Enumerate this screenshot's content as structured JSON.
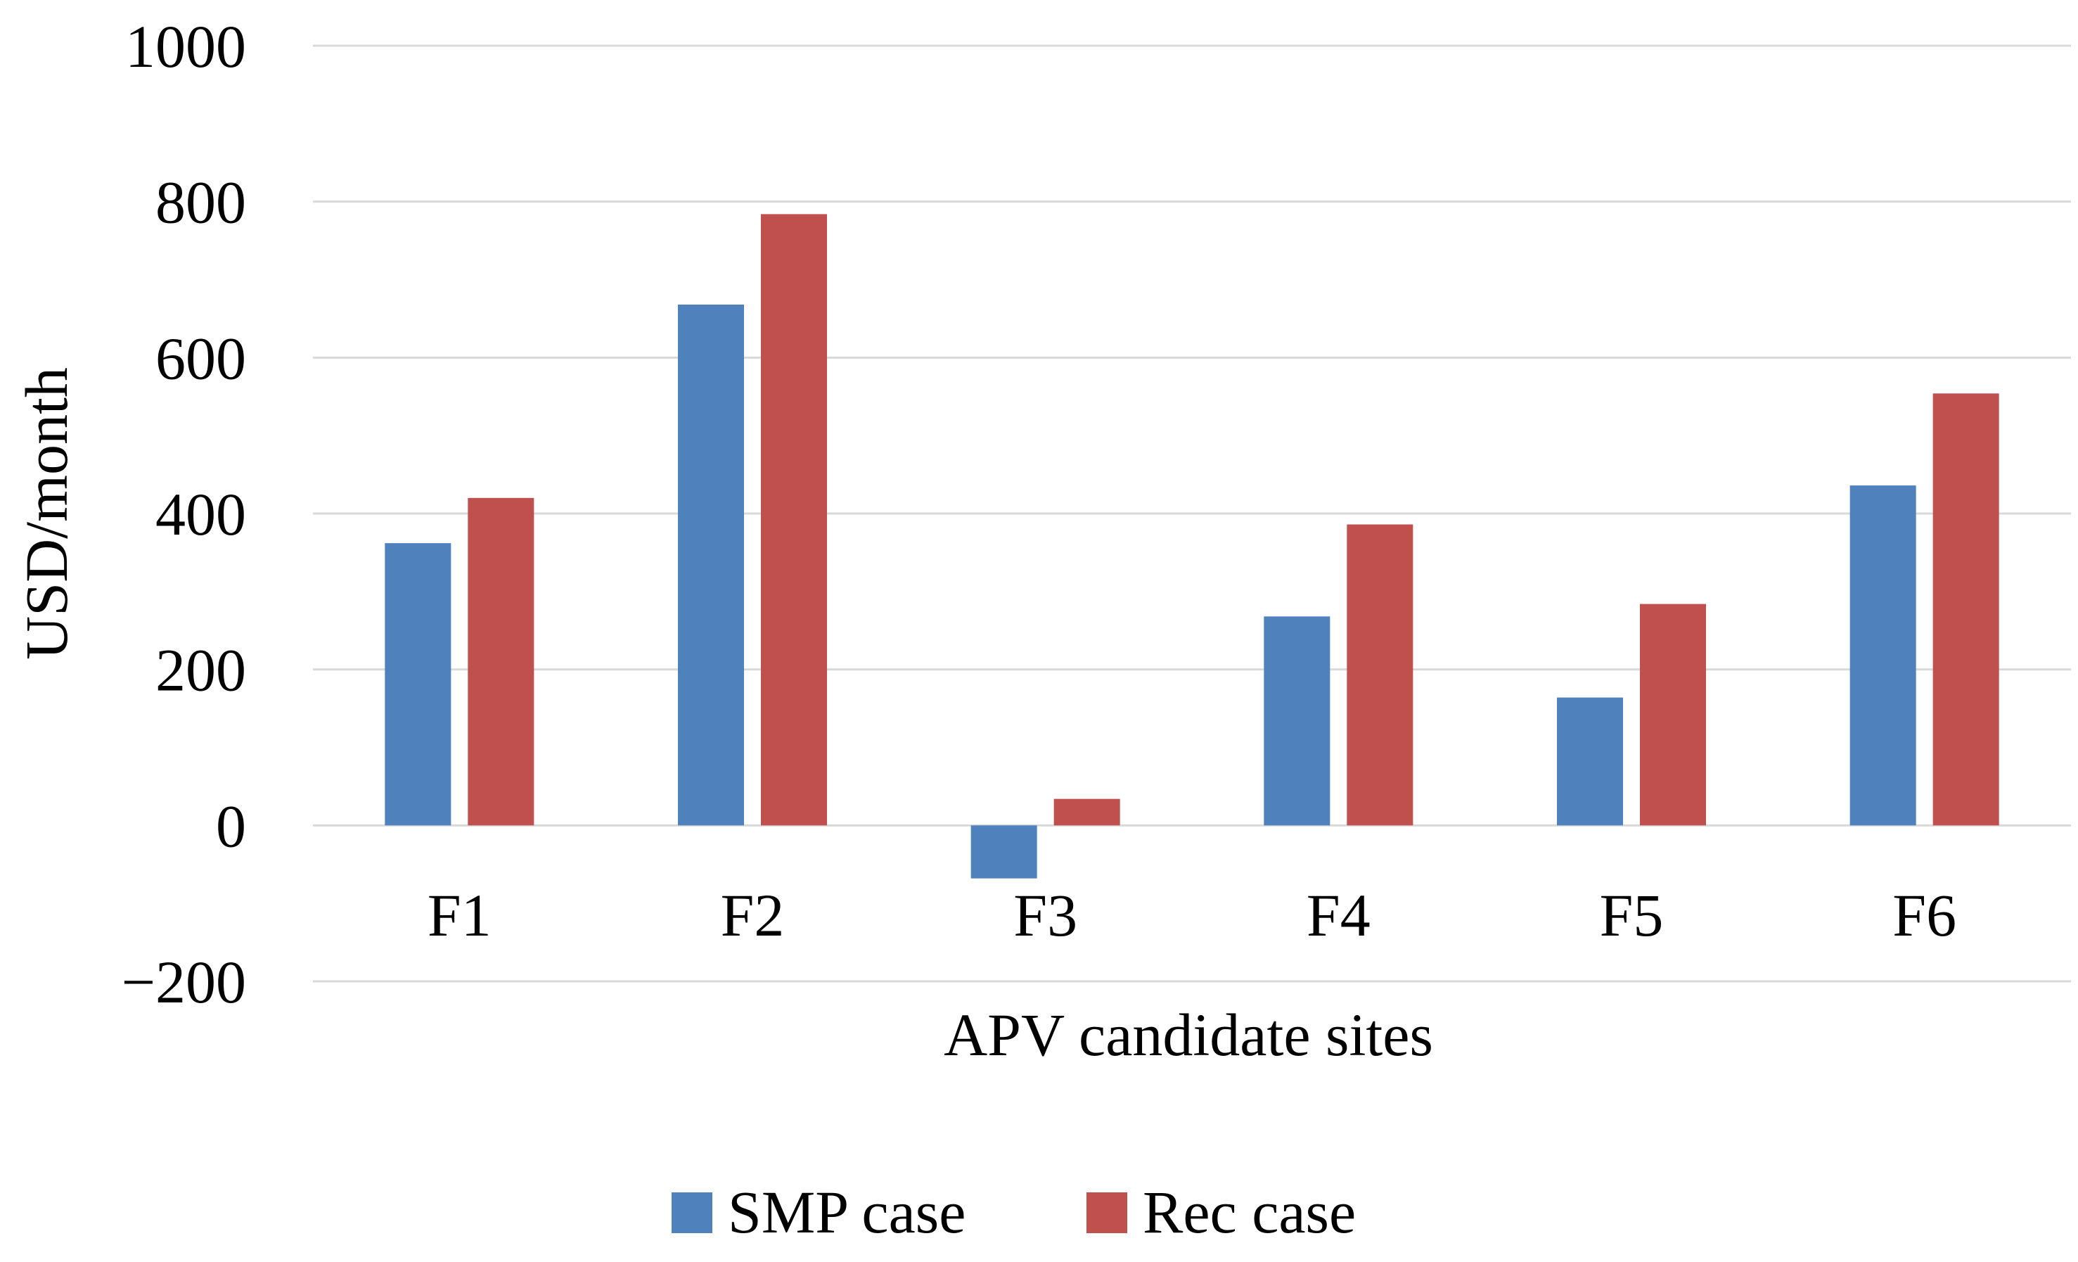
{
  "chart_data": {
    "type": "bar",
    "title": "",
    "xlabel": "APV candidate sites",
    "ylabel": "USD/month",
    "categories": [
      "F1",
      "F2",
      "F3",
      "F4",
      "F5",
      "F6"
    ],
    "series": [
      {
        "name": "SMP case",
        "color": "#4f81bd",
        "values": [
          362,
          668,
          -68,
          268,
          164,
          436
        ]
      },
      {
        "name": "Rec case",
        "color": "#c0504d",
        "values": [
          420,
          784,
          34,
          386,
          284,
          554
        ]
      }
    ],
    "ylim": [
      -200,
      1000
    ],
    "yticks": [
      -200,
      0,
      200,
      400,
      600,
      800,
      1000
    ],
    "ytick_labels": [
      "−200",
      "0",
      "200",
      "400",
      "600",
      "800",
      "1000"
    ],
    "grid": true,
    "legend": "bottom"
  }
}
